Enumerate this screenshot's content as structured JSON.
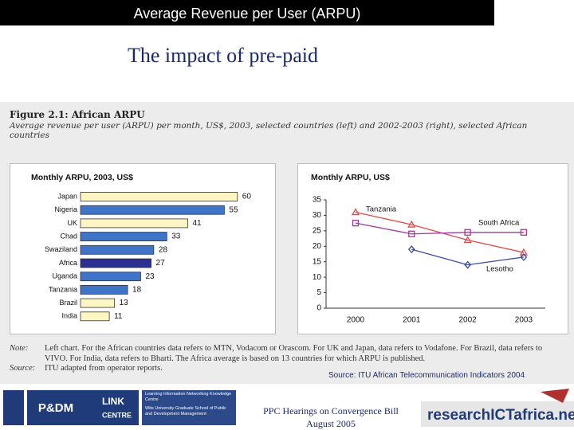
{
  "header": {
    "title": "Average Revenue per User (ARPU)",
    "subtitle": "The impact of pre-paid"
  },
  "figure": {
    "heading": "Figure 2.1: African ARPU",
    "caption": "Average revenue per user (ARPU) per month, US$, 2003, selected countries (left) and 2002-2003 (right), selected African countries",
    "note_key": "Note:",
    "note": "Left chart. For the African countries data refers to MTN, Vodacom or Orascom. For UK and Japan, data refers to Vodafone. For Brazil, data refers to VIVO. For India, data refers to Bharti. The Africa average is based on 13 countries for which ARPU is published.",
    "source_key": "Source:",
    "source": "ITU adapted from operator reports."
  },
  "chart_data": [
    {
      "type": "hbar",
      "title": "Monthly ARPU, 2003, US$",
      "categories": [
        "Japan",
        "Nigeria",
        "UK",
        "Chad",
        "Swaziland",
        "Africa",
        "Uganda",
        "Tanzania",
        "Brazil",
        "India"
      ],
      "values": [
        60,
        55,
        41,
        33,
        28,
        27,
        23,
        18,
        13,
        11
      ],
      "colors": [
        "#fdf6c3",
        "#3f74c9",
        "#fdf6c3",
        "#3f74c9",
        "#3f74c9",
        "#2b2f92",
        "#3f74c9",
        "#3f74c9",
        "#fdf6c3",
        "#fdf6c3"
      ]
    },
    {
      "type": "line",
      "title": "Monthly ARPU, US$",
      "categories": [
        "2000",
        "2001",
        "2002",
        "2003"
      ],
      "ylim": [
        0,
        35
      ],
      "yticks": [
        0,
        5,
        10,
        15,
        20,
        25,
        30,
        35
      ],
      "series": [
        {
          "name": "Tanzania",
          "color": "#e04a4a",
          "marker": "triangle",
          "values": [
            31,
            27,
            22,
            18
          ]
        },
        {
          "name": "South Africa",
          "color": "#a03a9a",
          "marker": "square",
          "values": [
            27.5,
            24,
            24.5,
            24.5
          ]
        },
        {
          "name": "Lesotho",
          "color": "#3a4aa0",
          "marker": "diamond",
          "values": [
            null,
            19,
            14,
            16.5
          ]
        }
      ]
    }
  ],
  "source_line": "Source: ITU African Telecommunication Indicators 2004",
  "footer": {
    "line1": "PPC Hearings on Convergence Bill",
    "line2": "August 2005",
    "logo_pdm": "P&DM",
    "logo_link": "LINK",
    "logo_centre": "CENTRE",
    "logo_link_desc": "Learning Information Networking Knowledge Centre",
    "logo_wits": "Wits University Graduate School of Public and Development Management",
    "logo_research": "researchICTafrica.net"
  }
}
